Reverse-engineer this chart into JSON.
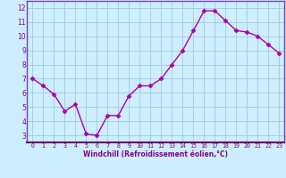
{
  "x": [
    0,
    1,
    2,
    3,
    4,
    5,
    6,
    7,
    8,
    9,
    10,
    11,
    12,
    13,
    14,
    15,
    16,
    17,
    18,
    19,
    20,
    21,
    22,
    23
  ],
  "y": [
    7.0,
    6.5,
    5.9,
    4.7,
    5.2,
    3.1,
    3.0,
    4.4,
    4.4,
    5.8,
    6.5,
    6.5,
    7.0,
    8.0,
    9.0,
    10.4,
    11.8,
    11.8,
    11.1,
    10.4,
    10.3,
    10.0,
    9.4,
    8.8
  ],
  "line_color": "#aa00aa",
  "marker": "D",
  "marker_size": 2.5,
  "xlabel": "Windchill (Refroidissement éolien,°C)",
  "xlim": [
    -0.5,
    23.5
  ],
  "ylim": [
    2.5,
    12.5
  ],
  "yticks": [
    3,
    4,
    5,
    6,
    7,
    8,
    9,
    10,
    11,
    12
  ],
  "xticks": [
    0,
    1,
    2,
    3,
    4,
    5,
    6,
    7,
    8,
    9,
    10,
    11,
    12,
    13,
    14,
    15,
    16,
    17,
    18,
    19,
    20,
    21,
    22,
    23
  ],
  "plot_bg_color": "#cceeff",
  "fig_bg_color": "#cceeff",
  "grid_color": "#aaccdd",
  "tick_label_color": "#880088",
  "axis_label_color": "#880088",
  "spine_color": "#7744aa",
  "label_area_color": "#ddeeff"
}
